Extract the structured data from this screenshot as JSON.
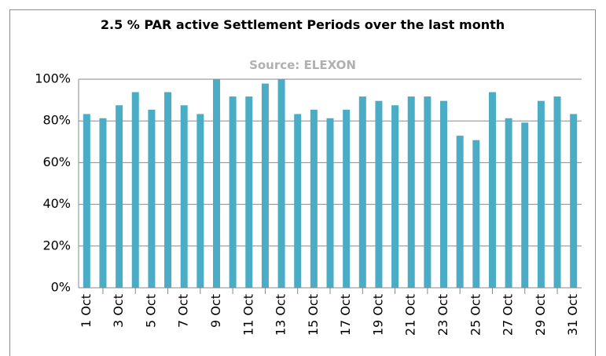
{
  "chart_data": {
    "type": "bar",
    "title": "2.5 % PAR active Settlement Periods over the last month",
    "subtitle": "Source: ELEXON",
    "categories": [
      "1 Oct",
      null,
      "3 Oct",
      null,
      "5 Oct",
      null,
      "7 Oct",
      null,
      "9 Oct",
      null,
      "11 Oct",
      null,
      "13 Oct",
      null,
      "15 Oct",
      null,
      "17 Oct",
      null,
      "19 Oct",
      null,
      "21 Oct",
      null,
      "23 Oct",
      null,
      "25 Oct",
      null,
      "27 Oct",
      null,
      "29 Oct",
      null,
      "31 Oct"
    ],
    "values": [
      83.3,
      81.3,
      87.5,
      93.8,
      85.4,
      93.8,
      87.5,
      83.3,
      100,
      91.7,
      91.7,
      97.9,
      100,
      83.3,
      85.4,
      81.3,
      85.4,
      91.7,
      89.6,
      87.5,
      91.7,
      91.7,
      89.6,
      72.9,
      70.8,
      93.8,
      81.3,
      79.2,
      89.6,
      91.7,
      83.3
    ],
    "color": "#4bacc6",
    "ylim": [
      0,
      100
    ],
    "yticks": [
      {
        "value": 0,
        "label": "0%"
      },
      {
        "value": 20,
        "label": "20%"
      },
      {
        "value": 40,
        "label": "40%"
      },
      {
        "value": 60,
        "label": "60%"
      },
      {
        "value": 80,
        "label": "80%"
      },
      {
        "value": 100,
        "label": "100%"
      }
    ],
    "grid": true
  }
}
